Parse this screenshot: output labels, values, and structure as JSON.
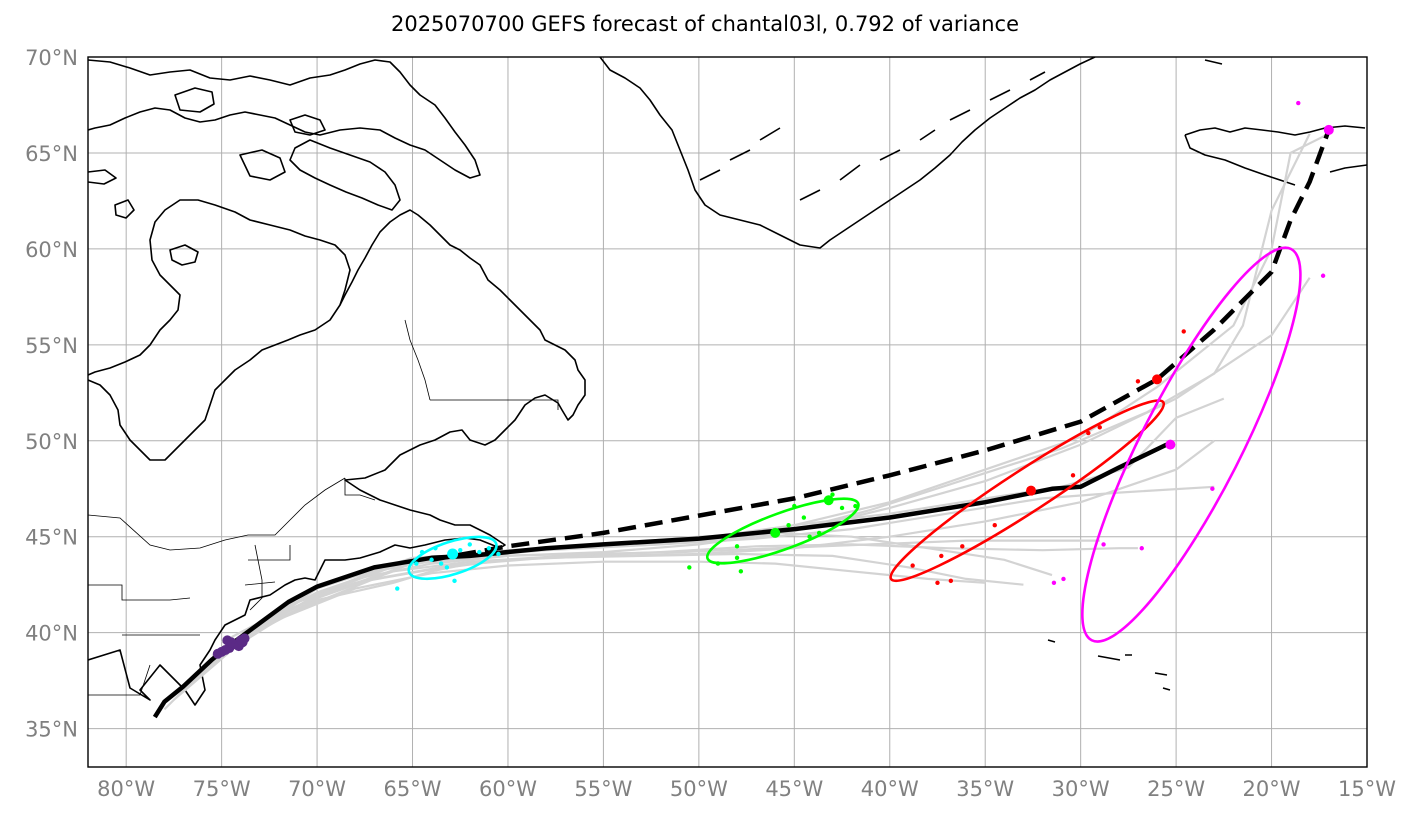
{
  "title": "2025070700 GEFS forecast of chantal03l, 0.792 of variance",
  "map": {
    "lon_range": [
      -82,
      -15
    ],
    "lat_range": [
      33,
      70
    ],
    "lon_ticks": [
      {
        "value": -80,
        "label": "80°W"
      },
      {
        "value": -75,
        "label": "75°W"
      },
      {
        "value": -70,
        "label": "70°W"
      },
      {
        "value": -65,
        "label": "65°W"
      },
      {
        "value": -60,
        "label": "60°W"
      },
      {
        "value": -55,
        "label": "55°W"
      },
      {
        "value": -50,
        "label": "50°W"
      },
      {
        "value": -45,
        "label": "45°W"
      },
      {
        "value": -40,
        "label": "40°W"
      },
      {
        "value": -35,
        "label": "35°W"
      },
      {
        "value": -30,
        "label": "30°W"
      },
      {
        "value": -25,
        "label": "25°W"
      },
      {
        "value": -20,
        "label": "20°W"
      },
      {
        "value": -15,
        "label": "15°W"
      }
    ],
    "lat_ticks": [
      {
        "value": 35,
        "label": "35°N"
      },
      {
        "value": 40,
        "label": "40°N"
      },
      {
        "value": 45,
        "label": "45°N"
      },
      {
        "value": 50,
        "label": "50°N"
      },
      {
        "value": 55,
        "label": "55°N"
      },
      {
        "value": 60,
        "label": "60°N"
      },
      {
        "value": 65,
        "label": "65°N"
      },
      {
        "value": 70,
        "label": "70°N"
      }
    ],
    "colors": {
      "coastline": "#000000",
      "grid": "#b0b0b0",
      "member_track": "#d3d3d3",
      "mean_track": "#000000",
      "purple": "#5b2a86",
      "cyan": "#00ffff",
      "green": "#00ff00",
      "red": "#ff0000",
      "magenta": "#ff00ff"
    }
  },
  "chart_data": {
    "type": "map-tracks",
    "mode_solid_track": [
      [
        -78.5,
        35.6
      ],
      [
        -78,
        36.4
      ],
      [
        -77,
        37.2
      ],
      [
        -75.5,
        38.6
      ],
      [
        -74.5,
        39.4
      ],
      [
        -73,
        40.5
      ],
      [
        -71.5,
        41.6
      ],
      [
        -70,
        42.4
      ],
      [
        -67,
        43.4
      ],
      [
        -64,
        43.9
      ],
      [
        -62,
        44.0
      ],
      [
        -58,
        44.4
      ],
      [
        -55,
        44.6
      ],
      [
        -50,
        44.9
      ],
      [
        -45,
        45.4
      ],
      [
        -40,
        46.0
      ],
      [
        -35,
        46.8
      ],
      [
        -31.5,
        47.5
      ],
      [
        -30,
        47.6
      ],
      [
        -28,
        48.6
      ],
      [
        -25.5,
        49.8
      ]
    ],
    "mode_dashed_track": [
      [
        -64,
        43.8
      ],
      [
        -60,
        44.5
      ],
      [
        -55,
        45.2
      ],
      [
        -50,
        46.1
      ],
      [
        -45,
        47.0
      ],
      [
        -40,
        48.2
      ],
      [
        -35,
        49.5
      ],
      [
        -30,
        51.0
      ],
      [
        -26,
        53.2
      ],
      [
        -23,
        55.8
      ],
      [
        -20,
        58.8
      ],
      [
        -19,
        61.5
      ],
      [
        -18,
        63.5
      ],
      [
        -17,
        66.2
      ]
    ],
    "member_tracks": [
      [
        [
          -78,
          36
        ],
        [
          -75,
          39
        ],
        [
          -70,
          42.3
        ],
        [
          -65,
          43.9
        ],
        [
          -60,
          44.2
        ],
        [
          -55,
          44.5
        ],
        [
          -50,
          44.8
        ],
        [
          -45,
          45.6
        ],
        [
          -40,
          46.8
        ],
        [
          -35,
          48.5
        ],
        [
          -30,
          50.2
        ],
        [
          -26,
          52.8
        ],
        [
          -22,
          56
        ],
        [
          -20,
          60
        ],
        [
          -19,
          65
        ],
        [
          -17,
          66
        ]
      ],
      [
        [
          -77,
          37
        ],
        [
          -73,
          40.5
        ],
        [
          -68,
          42.8
        ],
        [
          -64,
          43.6
        ],
        [
          -60,
          44.0
        ],
        [
          -55,
          44.2
        ],
        [
          -50,
          44.6
        ],
        [
          -45,
          45.3
        ],
        [
          -40,
          46.5
        ],
        [
          -35,
          47.9
        ],
        [
          -30,
          49.8
        ],
        [
          -25,
          52.2
        ],
        [
          -20,
          55.5
        ],
        [
          -18,
          58.5
        ]
      ],
      [
        [
          -77.5,
          36.5
        ],
        [
          -72,
          41.2
        ],
        [
          -67,
          43.2
        ],
        [
          -63,
          43.9
        ],
        [
          -58,
          44.3
        ],
        [
          -52,
          44.6
        ],
        [
          -46,
          45.1
        ],
        [
          -41,
          46.4
        ],
        [
          -36,
          48.0
        ],
        [
          -31,
          49.6
        ],
        [
          -26.5,
          51.5
        ],
        [
          -23,
          53.5
        ],
        [
          -21.5,
          56
        ],
        [
          -20,
          62
        ],
        [
          -18,
          66
        ]
      ],
      [
        [
          -76,
          38
        ],
        [
          -72,
          41.3
        ],
        [
          -68,
          42.6
        ],
        [
          -64,
          43.3
        ],
        [
          -60,
          43.8
        ],
        [
          -55,
          44.0
        ],
        [
          -50,
          44.1
        ],
        [
          -45,
          44.4
        ],
        [
          -40,
          45.0
        ],
        [
          -35,
          45.8
        ],
        [
          -30,
          46.8
        ],
        [
          -25,
          48.5
        ],
        [
          -23,
          50
        ]
      ],
      [
        [
          -76,
          38
        ],
        [
          -71,
          41.6
        ],
        [
          -66,
          43.5
        ],
        [
          -62,
          44.1
        ],
        [
          -57,
          44.4
        ],
        [
          -52,
          44.6
        ],
        [
          -47,
          44.9
        ],
        [
          -42,
          45.4
        ],
        [
          -37,
          46.2
        ],
        [
          -32,
          47.0
        ],
        [
          -28,
          47.3
        ],
        [
          -23,
          47.6
        ]
      ],
      [
        [
          -75,
          39
        ],
        [
          -70,
          42
        ],
        [
          -65,
          43.8
        ],
        [
          -60,
          44.3
        ],
        [
          -55,
          44.6
        ],
        [
          -50,
          45.0
        ],
        [
          -46,
          45.2
        ],
        [
          -42,
          45.0
        ],
        [
          -38,
          44.4
        ],
        [
          -34,
          43.8
        ],
        [
          -31.5,
          43.0
        ]
      ],
      [
        [
          -75,
          39
        ],
        [
          -70,
          41.8
        ],
        [
          -66,
          43.2
        ],
        [
          -62,
          43.7
        ],
        [
          -57,
          44.0
        ],
        [
          -52,
          44.2
        ],
        [
          -47,
          44.5
        ],
        [
          -42,
          44.6
        ],
        [
          -37,
          44.4
        ],
        [
          -32,
          44.3
        ],
        [
          -28,
          44.4
        ],
        [
          -27,
          44.4
        ]
      ],
      [
        [
          -75.5,
          38.8
        ],
        [
          -71,
          41.2
        ],
        [
          -67,
          42.8
        ],
        [
          -63,
          43.5
        ],
        [
          -58,
          43.9
        ],
        [
          -53,
          44.0
        ],
        [
          -48,
          44.1
        ],
        [
          -43,
          44.0
        ],
        [
          -39,
          43.4
        ],
        [
          -36,
          42.8
        ],
        [
          -33,
          42.5
        ]
      ],
      [
        [
          -76,
          38.2
        ],
        [
          -72,
          40.7
        ],
        [
          -68,
          42.3
        ],
        [
          -64,
          43.1
        ],
        [
          -60,
          43.5
        ],
        [
          -55,
          43.7
        ],
        [
          -50,
          43.7
        ],
        [
          -46,
          43.6
        ],
        [
          -42,
          43.2
        ],
        [
          -38,
          42.8
        ],
        [
          -35,
          42.6
        ]
      ],
      [
        [
          -75,
          39.2
        ],
        [
          -70,
          41.9
        ],
        [
          -65,
          43.6
        ],
        [
          -61,
          44.0
        ],
        [
          -56,
          44.1
        ],
        [
          -51,
          44.2
        ],
        [
          -46,
          44.4
        ],
        [
          -41,
          44.6
        ],
        [
          -36,
          44.8
        ],
        [
          -32,
          44.8
        ],
        [
          -29,
          44.8
        ]
      ],
      [
        [
          -75,
          39.5
        ],
        [
          -70,
          42.1
        ],
        [
          -65,
          43.8
        ],
        [
          -60,
          44.2
        ],
        [
          -55,
          44.5
        ],
        [
          -50,
          44.9
        ],
        [
          -45,
          45.6
        ],
        [
          -40,
          46.2
        ],
        [
          -35,
          47.0
        ],
        [
          -31,
          47.6
        ],
        [
          -27.5,
          48.6
        ],
        [
          -25,
          51.2
        ],
        [
          -22.5,
          52.2
        ]
      ],
      [
        [
          -74.5,
          39.5
        ],
        [
          -70,
          41.7
        ],
        [
          -66,
          42.6
        ],
        [
          -64,
          43.2
        ],
        [
          -61,
          43.8
        ]
      ]
    ],
    "ellipses": [
      {
        "color": "cyan",
        "center": [
          -62.9,
          43.9
        ],
        "a_deg": 2.4,
        "b_deg": 0.85,
        "angle": 18
      },
      {
        "color": "green",
        "center": [
          -45.6,
          45.3
        ],
        "a_deg": 4.2,
        "b_deg": 0.95,
        "angle": 20
      },
      {
        "color": "red",
        "center": [
          -32.8,
          47.4
        ],
        "a_deg": 8.5,
        "b_deg": 1.1,
        "angle": 33
      },
      {
        "color": "magenta",
        "center": [
          -24.2,
          49.8
        ],
        "a_deg": 11.5,
        "b_deg": 2.6,
        "angle": 63
      }
    ],
    "points": {
      "purple": [
        [
          -75,
          39
        ],
        [
          -74.6,
          39.2
        ],
        [
          -74.3,
          39.4
        ],
        [
          -74,
          39.6
        ],
        [
          -73.8,
          39.7
        ],
        [
          -74.8,
          39.1
        ],
        [
          -75.2,
          38.9
        ],
        [
          -74.5,
          39.5
        ],
        [
          -74.1,
          39.3
        ],
        [
          -74.7,
          39.6
        ],
        [
          -73.9,
          39.5
        ]
      ],
      "cyan": [
        [
          -63,
          44.1
        ],
        [
          -62.5,
          44.3
        ],
        [
          -63.5,
          43.6
        ],
        [
          -64,
          43.8
        ],
        [
          -61.5,
          44.2
        ],
        [
          -62,
          44.6
        ],
        [
          -63.2,
          43.4
        ],
        [
          -64.5,
          44.2
        ],
        [
          -62.8,
          42.7
        ],
        [
          -61,
          44.4
        ],
        [
          -64.8,
          43.6
        ],
        [
          -65.8,
          42.3
        ],
        [
          -60.5,
          44.1
        ],
        [
          -63.8,
          44.4
        ]
      ],
      "green": [
        [
          -43.2,
          46.9
        ],
        [
          -45,
          46.6
        ],
        [
          -44.5,
          46
        ],
        [
          -45.3,
          45.6
        ],
        [
          -46,
          45.2
        ],
        [
          -48,
          44.5
        ],
        [
          -48,
          43.9
        ],
        [
          -49,
          43.6
        ],
        [
          -47.8,
          43.2
        ],
        [
          -50.5,
          43.4
        ],
        [
          -42.5,
          46.5
        ],
        [
          -43.7,
          45.2
        ],
        [
          -41.8,
          46.6
        ],
        [
          -43,
          47.2
        ],
        [
          -44.2,
          45
        ]
      ],
      "red": [
        [
          -26,
          53.2
        ],
        [
          -24.6,
          55.7
        ],
        [
          -27,
          53.1
        ],
        [
          -29,
          50.7
        ],
        [
          -29.6,
          50.4
        ],
        [
          -30.4,
          48.2
        ],
        [
          -32.6,
          47.4
        ],
        [
          -34.5,
          45.6
        ],
        [
          -36.2,
          44.5
        ],
        [
          -37.3,
          44
        ],
        [
          -38.8,
          43.5
        ],
        [
          -36.8,
          42.7
        ],
        [
          -37.5,
          42.6
        ]
      ],
      "magenta": [
        [
          -17,
          66.2
        ],
        [
          -18.6,
          67.6
        ],
        [
          -17.3,
          58.6
        ],
        [
          -25.3,
          49.8
        ],
        [
          -23.1,
          47.5
        ],
        [
          -28.8,
          44.6
        ],
        [
          -26.8,
          44.4
        ],
        [
          -30.9,
          42.8
        ],
        [
          -31.4,
          42.6
        ]
      ]
    },
    "large_points": [
      {
        "color": "cyan",
        "lonlat": [
          -62.9,
          44.1
        ],
        "r": 5.5
      },
      {
        "color": "green",
        "lonlat": [
          -46,
          45.2
        ],
        "r": 5
      },
      {
        "color": "green",
        "lonlat": [
          -43.2,
          46.9
        ],
        "r": 5
      },
      {
        "color": "red",
        "lonlat": [
          -32.6,
          47.4
        ],
        "r": 5
      },
      {
        "color": "red",
        "lonlat": [
          -26,
          53.2
        ],
        "r": 5
      },
      {
        "color": "magenta",
        "lonlat": [
          -25.3,
          49.8
        ],
        "r": 5
      },
      {
        "color": "magenta",
        "lonlat": [
          -17,
          66.2
        ],
        "r": 5
      }
    ]
  }
}
